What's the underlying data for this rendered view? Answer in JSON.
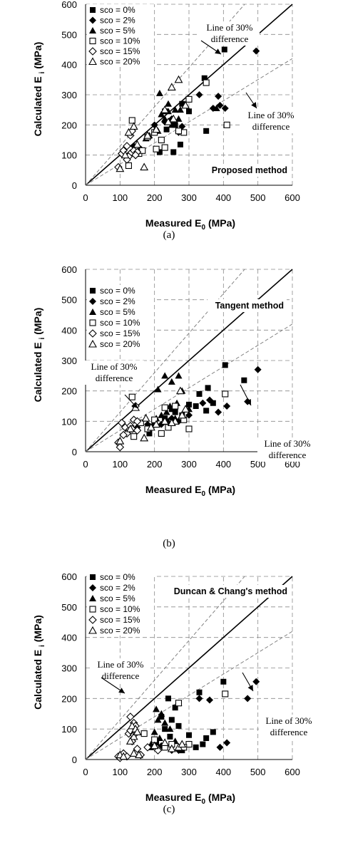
{
  "chart_data": [
    {
      "type": "scatter",
      "panel": "(a)",
      "method_label": "Proposed method",
      "xlabel": "Measured E",
      "xlabel_sub": "0",
      "xlabel_unit": " (MPa)",
      "ylabel": "Calculated E",
      "ylabel_sub": "i",
      "ylabel_unit": " (MPa)",
      "xlim": [
        0,
        600
      ],
      "ylim": [
        0,
        600
      ],
      "ticks": [
        0,
        100,
        200,
        300,
        400,
        500,
        600
      ],
      "grid": "dashed-major",
      "legend_position": "top-left",
      "annotations": [
        {
          "lines": [
            "Line of 30%",
            "difference"
          ]
        },
        {
          "lines": [
            "Line of 30%",
            "difference"
          ]
        }
      ],
      "series": [
        {
          "name": "sco = 0%",
          "marker": "square-filled",
          "points": [
            [
              403,
              450
            ],
            [
              345,
              355
            ],
            [
              350,
              180
            ],
            [
              255,
              110
            ],
            [
              230,
              245
            ],
            [
              300,
              245
            ],
            [
              275,
              135
            ],
            [
              215,
              110
            ],
            [
              235,
              185
            ],
            [
              280,
              270
            ],
            [
              260,
              200
            ]
          ]
        },
        {
          "name": "sco = 2%",
          "marker": "diamond-filled",
          "points": [
            [
              495,
              445
            ],
            [
              385,
              295
            ],
            [
              370,
              255
            ],
            [
              390,
              265
            ],
            [
              405,
              255
            ],
            [
              330,
              300
            ],
            [
              230,
              210
            ],
            [
              250,
              220
            ],
            [
              270,
              175
            ],
            [
              280,
              195
            ],
            [
              140,
              130
            ],
            [
              160,
              120
            ],
            [
              200,
              200
            ]
          ]
        },
        {
          "name": "sco = 5%",
          "marker": "triangle-filled",
          "points": [
            [
              215,
              305
            ],
            [
              240,
              270
            ],
            [
              220,
              235
            ],
            [
              275,
              250
            ],
            [
              185,
              165
            ],
            [
              260,
              250
            ],
            [
              380,
              255
            ],
            [
              230,
              220
            ],
            [
              200,
              180
            ],
            [
              250,
              200
            ],
            [
              270,
              220
            ],
            [
              240,
              245
            ],
            [
              210,
              180
            ],
            [
              175,
              155
            ]
          ]
        },
        {
          "name": "sco = 10%",
          "marker": "square-open",
          "points": [
            [
              135,
              215
            ],
            [
              410,
              200
            ],
            [
              125,
              65
            ],
            [
              205,
              120
            ],
            [
              300,
              285
            ],
            [
              285,
              175
            ],
            [
              180,
              160
            ],
            [
              230,
              125
            ],
            [
              350,
              340
            ],
            [
              155,
              105
            ],
            [
              220,
              150
            ],
            [
              270,
              180
            ],
            [
              200,
              175
            ],
            [
              165,
              115
            ]
          ]
        },
        {
          "name": "sco = 15%",
          "marker": "diamond-open",
          "points": [
            [
              95,
              60
            ],
            [
              105,
              105
            ],
            [
              110,
              115
            ],
            [
              120,
              130
            ],
            [
              130,
              165
            ],
            [
              135,
              180
            ],
            [
              130,
              105
            ],
            [
              125,
              95
            ],
            [
              140,
              115
            ],
            [
              150,
              110
            ],
            [
              145,
              100
            ],
            [
              120,
              85
            ]
          ]
        },
        {
          "name": "sco = 20%",
          "marker": "triangle-open",
          "points": [
            [
              100,
              55
            ],
            [
              170,
              60
            ],
            [
              125,
              175
            ],
            [
              140,
              195
            ],
            [
              180,
              165
            ],
            [
              270,
              350
            ],
            [
              250,
              325
            ],
            [
              290,
              265
            ],
            [
              230,
              250
            ],
            [
              255,
              220
            ],
            [
              150,
              135
            ],
            [
              205,
              185
            ],
            [
              240,
              210
            ],
            [
              115,
              100
            ]
          ]
        }
      ]
    },
    {
      "type": "scatter",
      "panel": "(b)",
      "method_label": "Tangent method",
      "xlabel": "Measured E",
      "xlabel_sub": "0",
      "xlabel_unit": " (MPa)",
      "ylabel": "Calculated E",
      "ylabel_sub": "i",
      "ylabel_unit": " (MPa)",
      "xlim": [
        0,
        600
      ],
      "ylim": [
        0,
        600
      ],
      "ticks": [
        0,
        100,
        200,
        300,
        400,
        500,
        600
      ],
      "grid": "dashed-major",
      "legend_position": "top-left",
      "annotations": [
        {
          "lines": [
            "Line of 30%",
            "difference"
          ]
        },
        {
          "lines": [
            "Line of 30%",
            "difference"
          ]
        }
      ],
      "series": [
        {
          "name": "sco = 0%",
          "marker": "square-filled",
          "points": [
            [
              405,
              285
            ],
            [
              460,
              235
            ],
            [
              330,
              190
            ],
            [
              355,
              210
            ],
            [
              300,
              155
            ],
            [
              260,
              130
            ],
            [
              230,
              110
            ],
            [
              185,
              60
            ],
            [
              200,
              90
            ],
            [
              250,
              140
            ],
            [
              280,
              120
            ],
            [
              350,
              135
            ],
            [
              370,
              160
            ],
            [
              320,
              150
            ]
          ]
        },
        {
          "name": "sco = 2%",
          "marker": "diamond-filled",
          "points": [
            [
              500,
              270
            ],
            [
              470,
              165
            ],
            [
              410,
              150
            ],
            [
              385,
              130
            ],
            [
              340,
              160
            ],
            [
              300,
              120
            ],
            [
              270,
              100
            ],
            [
              220,
              90
            ],
            [
              250,
              110
            ],
            [
              360,
              170
            ],
            [
              180,
              90
            ],
            [
              150,
              80
            ]
          ]
        },
        {
          "name": "sco = 5%",
          "marker": "triangle-filled",
          "points": [
            [
              230,
              250
            ],
            [
              210,
              205
            ],
            [
              270,
              250
            ],
            [
              250,
              230
            ],
            [
              280,
              200
            ],
            [
              245,
              150
            ],
            [
              235,
              130
            ],
            [
              260,
              110
            ],
            [
              220,
              120
            ],
            [
              300,
              140
            ],
            [
              265,
              160
            ],
            [
              240,
              100
            ],
            [
              205,
              110
            ]
          ]
        },
        {
          "name": "sco = 10%",
          "marker": "square-open",
          "points": [
            [
              135,
              180
            ],
            [
              405,
              190
            ],
            [
              300,
              75
            ],
            [
              180,
              75
            ],
            [
              230,
              145
            ],
            [
              260,
              150
            ],
            [
              285,
              105
            ],
            [
              200,
              105
            ],
            [
              220,
              60
            ],
            [
              160,
              95
            ],
            [
              140,
              50
            ],
            [
              240,
              80
            ]
          ]
        },
        {
          "name": "sco = 15%",
          "marker": "diamond-open",
          "points": [
            [
              95,
              30
            ],
            [
              100,
              15
            ],
            [
              105,
              95
            ],
            [
              115,
              80
            ],
            [
              125,
              70
            ],
            [
              130,
              85
            ],
            [
              140,
              105
            ],
            [
              150,
              100
            ],
            [
              120,
              60
            ],
            [
              135,
              75
            ],
            [
              110,
              55
            ],
            [
              145,
              150
            ],
            [
              150,
              70
            ]
          ]
        },
        {
          "name": "sco = 20%",
          "marker": "triangle-open",
          "points": [
            [
              100,
              35
            ],
            [
              145,
              145
            ],
            [
              175,
              110
            ],
            [
              170,
              45
            ],
            [
              260,
              100
            ],
            [
              280,
              120
            ],
            [
              205,
              90
            ],
            [
              230,
              100
            ],
            [
              250,
              95
            ],
            [
              275,
              200
            ],
            [
              290,
              140
            ],
            [
              190,
              80
            ],
            [
              130,
              75
            ]
          ]
        }
      ]
    },
    {
      "type": "scatter",
      "panel": "(c)",
      "method_label": "Duncan & Chang's method",
      "xlabel": "Measured E",
      "xlabel_sub": "0",
      "xlabel_unit": " (MPa)",
      "ylabel": "Calculated E",
      "ylabel_sub": "i",
      "ylabel_unit": " (MPa)",
      "xlim": [
        0,
        600
      ],
      "ylim": [
        0,
        600
      ],
      "ticks": [
        0,
        100,
        200,
        300,
        400,
        500,
        600
      ],
      "grid": "dashed-major",
      "legend_position": "top-left",
      "annotations": [
        {
          "lines": [
            "Line of 30%",
            "difference"
          ]
        },
        {
          "lines": [
            "Line of 30%",
            "difference"
          ]
        }
      ],
      "series": [
        {
          "name": "sco = 0%",
          "marker": "square-filled",
          "points": [
            [
              400,
              255
            ],
            [
              330,
              220
            ],
            [
              240,
              200
            ],
            [
              260,
              170
            ],
            [
              250,
              130
            ],
            [
              220,
              140
            ],
            [
              270,
              110
            ],
            [
              230,
              100
            ],
            [
              245,
              75
            ],
            [
              300,
              80
            ],
            [
              350,
              70
            ],
            [
              370,
              90
            ],
            [
              340,
              50
            ],
            [
              320,
              40
            ],
            [
              280,
              30
            ],
            [
              205,
              55
            ],
            [
              190,
              40
            ]
          ]
        },
        {
          "name": "sco = 2%",
          "marker": "diamond-filled",
          "points": [
            [
              495,
              255
            ],
            [
              470,
              200
            ],
            [
              360,
              195
            ],
            [
              330,
              200
            ],
            [
              410,
              55
            ],
            [
              390,
              40
            ],
            [
              300,
              50
            ],
            [
              270,
              30
            ],
            [
              220,
              45
            ],
            [
              250,
              30
            ]
          ]
        },
        {
          "name": "sco = 5%",
          "marker": "triangle-filled",
          "points": [
            [
              205,
              165
            ],
            [
              220,
              150
            ],
            [
              210,
              130
            ],
            [
              230,
              120
            ],
            [
              270,
              185
            ],
            [
              200,
              90
            ],
            [
              245,
              100
            ],
            [
              260,
              60
            ],
            [
              215,
              70
            ],
            [
              190,
              50
            ]
          ]
        },
        {
          "name": "sco = 10%",
          "marker": "square-open",
          "points": [
            [
              405,
              215
            ],
            [
              270,
              185
            ],
            [
              170,
              85
            ],
            [
              300,
              50
            ],
            [
              285,
              40
            ],
            [
              200,
              65
            ],
            [
              230,
              40
            ],
            [
              250,
              50
            ]
          ]
        },
        {
          "name": "sco = 15%",
          "marker": "diamond-open",
          "points": [
            [
              130,
              140
            ],
            [
              140,
              120
            ],
            [
              135,
              100
            ],
            [
              125,
              85
            ],
            [
              130,
              95
            ],
            [
              145,
              110
            ],
            [
              140,
              80
            ],
            [
              135,
              60
            ],
            [
              95,
              10
            ],
            [
              100,
              5
            ],
            [
              110,
              20
            ],
            [
              150,
              35
            ],
            [
              160,
              15
            ],
            [
              120,
              10
            ],
            [
              180,
              40
            ],
            [
              210,
              30
            ]
          ]
        },
        {
          "name": "sco = 20%",
          "marker": "triangle-open",
          "points": [
            [
              135,
              110
            ],
            [
              145,
              100
            ],
            [
              140,
              75
            ],
            [
              150,
              90
            ],
            [
              130,
              60
            ],
            [
              140,
              20
            ],
            [
              155,
              15
            ],
            [
              100,
              15
            ],
            [
              110,
              10
            ],
            [
              270,
              40
            ],
            [
              230,
              55
            ],
            [
              250,
              35
            ],
            [
              280,
              50
            ],
            [
              200,
              45
            ]
          ]
        }
      ]
    }
  ]
}
